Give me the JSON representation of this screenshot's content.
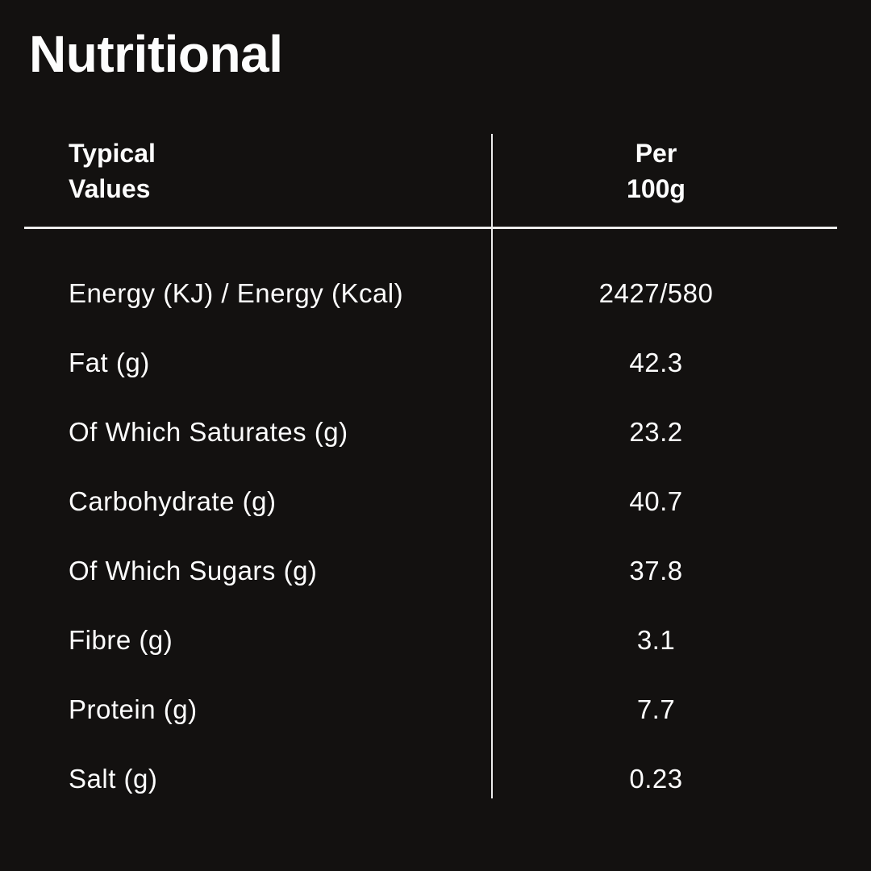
{
  "page": {
    "background": "#131110",
    "text_color": "#fdfdfd",
    "line_color": "#ececec"
  },
  "title": "Nutritional",
  "table": {
    "header": {
      "label_line1": "Typical",
      "label_line2": "Values",
      "value_line1": "Per",
      "value_line2": "100g"
    },
    "rows": [
      {
        "label": "Energy (KJ) / Energy (Kcal)",
        "value": "2427/580"
      },
      {
        "label": "Fat (g)",
        "value": "42.3"
      },
      {
        "label": "Of Which Saturates (g)",
        "value": "23.2"
      },
      {
        "label": "Carbohydrate (g)",
        "value": "40.7"
      },
      {
        "label": "Of Which Sugars (g)",
        "value": "37.8"
      },
      {
        "label": "Fibre (g)",
        "value": "3.1"
      },
      {
        "label": "Protein (g)",
        "value": "7.7"
      },
      {
        "label": "Salt (g)",
        "value": "0.23"
      }
    ]
  }
}
